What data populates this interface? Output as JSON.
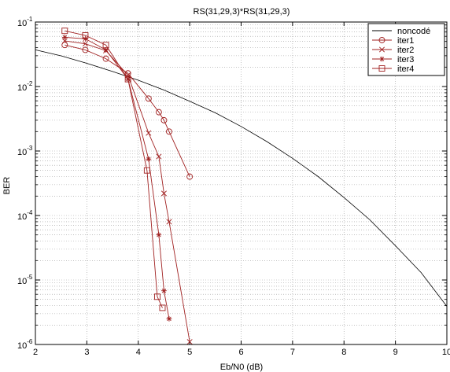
{
  "chart_data": {
    "type": "line",
    "title": "RS(31,29,3)*RS(31,29,3)",
    "xlabel": "Eb/N0 (dB)",
    "ylabel": "BER",
    "xlim": [
      2,
      10
    ],
    "ylim": [
      1e-06,
      0.1
    ],
    "yscale": "log",
    "grid": true,
    "legend_position": "top-right",
    "x_ticks": [
      2,
      3,
      4,
      5,
      6,
      7,
      8,
      9,
      10
    ],
    "y_ticks": [
      {
        "value": 1e-06,
        "base": "10",
        "exp": "-6"
      },
      {
        "value": 1e-05,
        "base": "10",
        "exp": "-5"
      },
      {
        "value": 0.0001,
        "base": "10",
        "exp": "-4"
      },
      {
        "value": 0.001,
        "base": "10",
        "exp": "-3"
      },
      {
        "value": 0.01,
        "base": "10",
        "exp": "-2"
      },
      {
        "value": 0.1,
        "base": "10",
        "exp": "-1"
      }
    ],
    "series": [
      {
        "name": "noncodé",
        "color": "#000000",
        "marker": "none",
        "x": [
          2,
          2.5,
          3,
          3.5,
          4,
          4.5,
          5,
          5.5,
          6,
          6.5,
          7,
          7.5,
          8,
          8.5,
          9,
          9.5,
          10
        ],
        "y": [
          0.037,
          0.0299,
          0.0229,
          0.0171,
          0.0125,
          0.0088,
          0.0059,
          0.0039,
          0.0024,
          0.0014,
          0.00077,
          0.0004,
          0.00019,
          8.6e-05,
          3.4e-05,
          1.3e-05,
          3.9e-06
        ]
      },
      {
        "name": "iter1",
        "color": "#a02020",
        "marker": "circle",
        "x": [
          2.57,
          2.97,
          3.37,
          3.8,
          4.2,
          4.4,
          4.5,
          4.6,
          5.0
        ],
        "y": [
          0.044,
          0.037,
          0.027,
          0.016,
          0.0065,
          0.004,
          0.003,
          0.002,
          0.0004
        ]
      },
      {
        "name": "iter2",
        "color": "#a02020",
        "marker": "x",
        "x": [
          2.57,
          2.97,
          3.37,
          3.8,
          4.2,
          4.4,
          4.5,
          4.6,
          5.0
        ],
        "y": [
          0.051,
          0.046,
          0.036,
          0.015,
          0.0019,
          0.00082,
          0.00022,
          8e-05,
          1.1e-06
        ]
      },
      {
        "name": "iter3",
        "color": "#a02020",
        "marker": "star",
        "x": [
          2.57,
          2.97,
          3.37,
          3.8,
          4.2,
          4.4,
          4.5,
          4.6
        ],
        "y": [
          0.058,
          0.055,
          0.037,
          0.013,
          0.00075,
          5e-05,
          6.8e-06,
          2.5e-06
        ]
      },
      {
        "name": "iter4",
        "color": "#a02020",
        "marker": "square",
        "x": [
          2.57,
          2.97,
          3.37,
          3.8,
          4.17,
          4.37,
          4.47
        ],
        "y": [
          0.073,
          0.062,
          0.044,
          0.013,
          0.0005,
          5.5e-06,
          3.7e-06
        ]
      }
    ]
  }
}
